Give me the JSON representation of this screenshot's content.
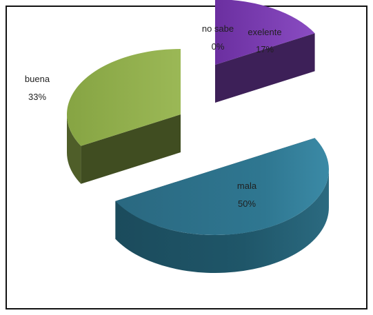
{
  "chart_data": {
    "type": "pie",
    "slices": [
      {
        "label": "exelente",
        "value": 17,
        "value_label": "17%",
        "color": "#7a3fb0"
      },
      {
        "label": "mala",
        "value": 50,
        "value_label": "50%",
        "color": "#2b6f86"
      },
      {
        "label": "buena",
        "value": 33,
        "value_label": "33%",
        "color": "#8fab4a"
      },
      {
        "label": "no sabe",
        "value": 0,
        "value_label": "0%",
        "color": "#4b76b5"
      }
    ]
  }
}
